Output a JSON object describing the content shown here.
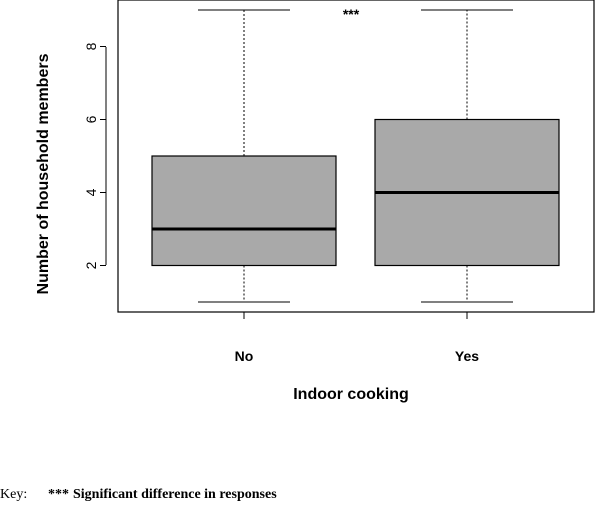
{
  "chart_data": {
    "type": "boxplot",
    "title": "",
    "xlabel": "Indoor cooking",
    "ylabel": "Number of household members",
    "categories": [
      "No",
      "Yes"
    ],
    "boxes": [
      {
        "category": "No",
        "whisker_low": 1,
        "q1": 2,
        "median": 3,
        "q3": 5,
        "whisker_high": 9
      },
      {
        "category": "Yes",
        "whisker_low": 1,
        "q1": 2,
        "median": 4,
        "q3": 6,
        "whisker_high": 9
      }
    ],
    "y_ticks": [
      "2",
      "4",
      "6",
      "8"
    ],
    "y_tick_values": [
      2,
      4,
      6,
      8
    ],
    "ylim": [
      0.7,
      9.3
    ],
    "annotation": "***",
    "box_color": "#a9a9a9",
    "grid": false
  },
  "key": {
    "label": "Key:",
    "marker": "***",
    "text": "Significant difference in responses"
  }
}
